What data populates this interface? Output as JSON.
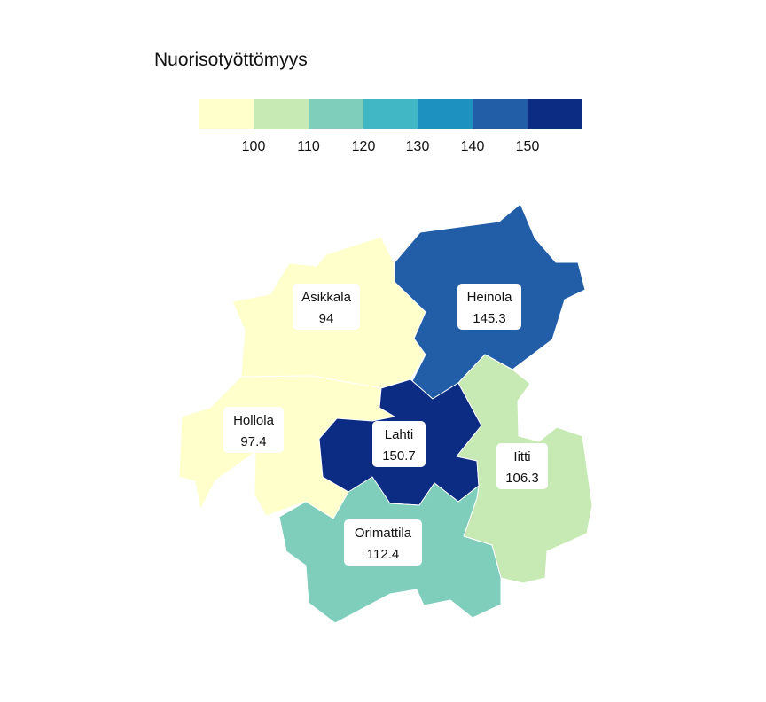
{
  "title": "Nuorisotyöttömyys",
  "legend": {
    "ticks": [
      100,
      110,
      120,
      130,
      140,
      150
    ],
    "colors": [
      "#ffffcc",
      "#c7e9b4",
      "#7fcdbb",
      "#41b6c4",
      "#1d91c0",
      "#225ea8",
      "#0c2c84"
    ]
  },
  "regions": [
    {
      "name": "Asikkala",
      "value": "94",
      "color": "#ffffcc"
    },
    {
      "name": "Heinola",
      "value": "145.3",
      "color": "#225ea8"
    },
    {
      "name": "Hollola",
      "value": "97.4",
      "color": "#ffffcc"
    },
    {
      "name": "Lahti",
      "value": "150.7",
      "color": "#0c2c84"
    },
    {
      "name": "Iitti",
      "value": "106.3",
      "color": "#c7e9b4"
    },
    {
      "name": "Orimattila",
      "value": "112.4",
      "color": "#7fcdbb"
    }
  ]
}
